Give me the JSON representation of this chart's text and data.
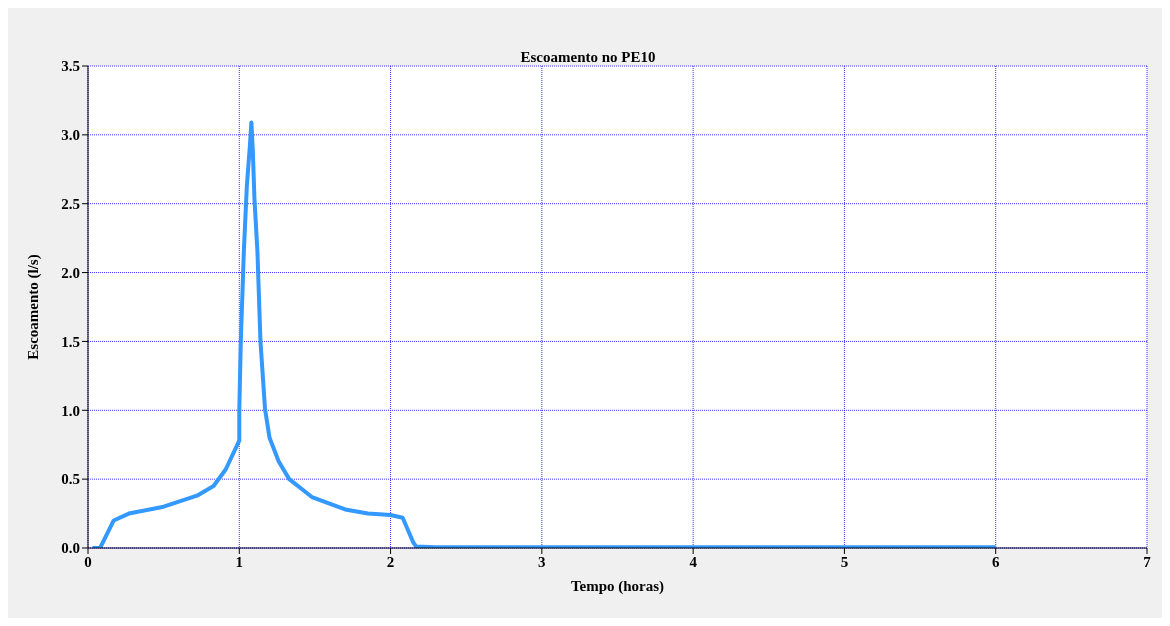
{
  "chart_data": {
    "type": "line",
    "title": "Escoamento no PE10",
    "xlabel": "Tempo (horas)",
    "ylabel": "Escoamento (l/s)",
    "x": [
      0.03,
      0.08,
      0.17,
      0.27,
      0.5,
      0.72,
      0.83,
      0.91,
      1.0,
      1.0,
      1.01,
      1.03,
      1.05,
      1.07,
      1.08,
      1.09,
      1.1,
      1.12,
      1.14,
      1.17,
      1.2,
      1.26,
      1.33,
      1.48,
      1.7,
      1.85,
      2.0,
      2.08,
      2.15,
      2.17,
      2.3,
      3.0,
      4.0,
      5.0,
      6.0
    ],
    "series": [
      {
        "color": "#3399ff",
        "values": [
          0,
          0,
          0.2,
          0.25,
          0.3,
          0.38,
          0.45,
          0.57,
          0.78,
          1.0,
          1.5,
          2.15,
          2.63,
          2.92,
          3.09,
          2.87,
          2.54,
          2.15,
          1.5,
          1.01,
          0.8,
          0.63,
          0.5,
          0.37,
          0.28,
          0.25,
          0.24,
          0.22,
          0.04,
          0.01,
          0.005,
          0.005,
          0.005,
          0.005,
          0.005
        ]
      }
    ],
    "xlim": [
      0,
      7
    ],
    "xticks": [
      0,
      1,
      2,
      3,
      4,
      5,
      6,
      7
    ],
    "ylim": [
      0,
      3.5
    ],
    "yticks": [
      {
        "value": 0,
        "label": "0.0"
      },
      {
        "value": 0.5,
        "label": "0.5"
      },
      {
        "value": 1,
        "label": "1.0"
      },
      {
        "value": 1.5,
        "label": "1.5"
      },
      {
        "value": 2,
        "label": "2.0"
      },
      {
        "value": 2.5,
        "label": "2.5"
      },
      {
        "value": 3,
        "label": "3.0"
      },
      {
        "value": 3.5,
        "label": "3.5"
      }
    ],
    "grid": true,
    "marker": "none",
    "line_style": "solid"
  }
}
